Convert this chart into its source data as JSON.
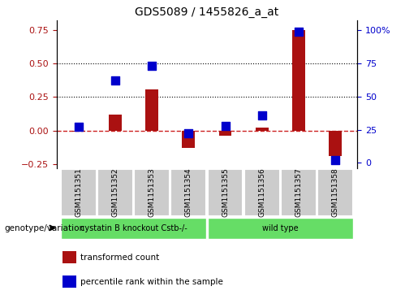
{
  "title": "GDS5089 / 1455826_a_at",
  "samples": [
    "GSM1151351",
    "GSM1151352",
    "GSM1151353",
    "GSM1151354",
    "GSM1151355",
    "GSM1151356",
    "GSM1151357",
    "GSM1151358"
  ],
  "transformed_count": [
    -0.01,
    0.12,
    0.31,
    -0.13,
    -0.04,
    0.02,
    0.75,
    -0.19
  ],
  "percentile_rank": [
    27,
    62,
    73,
    22,
    28,
    36,
    99,
    2
  ],
  "ylim_left": [
    -0.28,
    0.82
  ],
  "ylim_right": [
    -3.92,
    107
  ],
  "yticks_left": [
    -0.25,
    0.0,
    0.25,
    0.5,
    0.75
  ],
  "yticks_right": [
    0,
    25,
    50,
    75,
    100
  ],
  "bar_color": "#aa1111",
  "dot_color": "#0000cc",
  "hline_color": "#cc2222",
  "dotted_lines": [
    0.25,
    0.5
  ],
  "bar_width": 0.35,
  "dot_size": 55,
  "legend_items": [
    {
      "label": "transformed count",
      "color": "#aa1111"
    },
    {
      "label": "percentile rank within the sample",
      "color": "#0000cc"
    }
  ],
  "genotype_label": "genotype/variation",
  "group1_label": "cystatin B knockout Cstb-/-",
  "group2_label": "wild type",
  "group_color": "#66dd66",
  "sample_box_color": "#cccccc"
}
